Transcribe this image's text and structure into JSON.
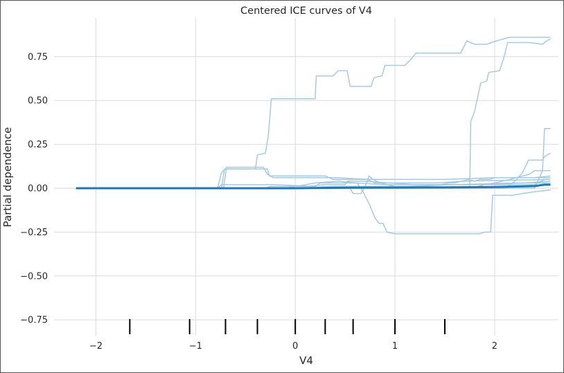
{
  "chart_data": {
    "type": "line",
    "title": "Centered ICE curves of V4",
    "xlabel": "V4",
    "ylabel": "Partial dependence",
    "xlim": [
      -2.42,
      2.64
    ],
    "ylim": [
      -0.84,
      0.97
    ],
    "xticks": [
      -2,
      -1,
      0,
      1,
      2
    ],
    "xtick_labels": [
      "−2",
      "−1",
      "0",
      "1",
      "2"
    ],
    "yticks": [
      0.75,
      0.5,
      0.25,
      0.0,
      -0.25,
      -0.5,
      -0.75
    ],
    "ytick_labels": [
      "0.75",
      "0.50",
      "0.25",
      "0.00",
      "−0.25",
      "−0.50",
      "−0.75"
    ],
    "grid": true,
    "legend": "none",
    "colors": {
      "ice": "#a6c9e0",
      "average": "#1f77b4",
      "rug": "#000000",
      "grid": "#d9d9d9",
      "frame": "#555555"
    },
    "rug": [
      -1.66,
      -1.06,
      -0.7,
      -0.38,
      0.0,
      0.3,
      0.58,
      1.0,
      1.5
    ],
    "series": [
      {
        "kind": "ice",
        "points": [
          [
            -2.2,
            0
          ],
          [
            -0.78,
            0
          ],
          [
            -0.74,
            0.09
          ],
          [
            -0.7,
            0.11
          ],
          [
            -0.4,
            0.11
          ],
          [
            -0.38,
            0.19
          ],
          [
            -0.3,
            0.2
          ],
          [
            -0.27,
            0.3
          ],
          [
            -0.24,
            0.51
          ],
          [
            0.2,
            0.51
          ],
          [
            0.21,
            0.64
          ],
          [
            0.38,
            0.64
          ],
          [
            0.43,
            0.67
          ],
          [
            0.52,
            0.67
          ],
          [
            0.55,
            0.58
          ],
          [
            0.76,
            0.58
          ],
          [
            0.79,
            0.63
          ],
          [
            0.87,
            0.64
          ],
          [
            0.9,
            0.7
          ],
          [
            0.97,
            0.7
          ],
          [
            1.1,
            0.7
          ],
          [
            1.17,
            0.74
          ],
          [
            1.21,
            0.77
          ],
          [
            1.35,
            0.77
          ],
          [
            1.66,
            0.77
          ],
          [
            1.72,
            0.84
          ],
          [
            1.8,
            0.82
          ],
          [
            1.92,
            0.82
          ],
          [
            2.02,
            0.84
          ],
          [
            2.15,
            0.86
          ],
          [
            2.56,
            0.86
          ]
        ]
      },
      {
        "kind": "ice",
        "points": [
          [
            -2.2,
            0
          ],
          [
            -0.74,
            0
          ],
          [
            -0.71,
            0.11
          ],
          [
            -0.5,
            0.11
          ],
          [
            -0.28,
            0.11
          ],
          [
            -0.26,
            0.07
          ],
          [
            0.3,
            0.07
          ],
          [
            0.38,
            0.05
          ],
          [
            0.72,
            0.05
          ],
          [
            0.8,
            0.03
          ],
          [
            1.4,
            0.03
          ],
          [
            1.7,
            0.04
          ],
          [
            2.56,
            0.05
          ]
        ]
      },
      {
        "kind": "ice",
        "points": [
          [
            -2.2,
            0
          ],
          [
            -0.72,
            0
          ],
          [
            -0.69,
            0.12
          ],
          [
            -0.5,
            0.12
          ],
          [
            -0.32,
            0.12
          ],
          [
            -0.28,
            0.08
          ],
          [
            -0.22,
            0.06
          ],
          [
            0.1,
            0.06
          ],
          [
            0.4,
            0.06
          ],
          [
            0.75,
            0.05
          ],
          [
            1.2,
            0.05
          ],
          [
            1.5,
            0.05
          ],
          [
            2.0,
            0.06
          ],
          [
            2.56,
            0.06
          ]
        ]
      },
      {
        "kind": "ice",
        "points": [
          [
            -2.2,
            0
          ],
          [
            -0.78,
            0
          ],
          [
            -0.74,
            0.02
          ],
          [
            -0.2,
            0.02
          ],
          [
            0.2,
            0.01
          ],
          [
            0.25,
            0.03
          ],
          [
            0.62,
            0.03
          ],
          [
            0.68,
            -0.02
          ],
          [
            0.75,
            -0.1
          ],
          [
            0.8,
            -0.17
          ],
          [
            0.84,
            -0.2
          ],
          [
            0.88,
            -0.2
          ],
          [
            0.92,
            -0.25
          ],
          [
            1.0,
            -0.26
          ],
          [
            1.85,
            -0.26
          ],
          [
            1.9,
            -0.25
          ],
          [
            1.96,
            -0.25
          ],
          [
            1.98,
            -0.04
          ],
          [
            2.18,
            -0.04
          ],
          [
            2.28,
            -0.03
          ],
          [
            2.4,
            -0.02
          ],
          [
            2.56,
            -0.01
          ]
        ]
      },
      {
        "kind": "ice",
        "points": [
          [
            -2.2,
            0
          ],
          [
            0.55,
            0
          ],
          [
            0.58,
            -0.03
          ],
          [
            0.66,
            -0.03
          ],
          [
            0.7,
            0.01
          ],
          [
            0.74,
            0.07
          ],
          [
            0.78,
            0.05
          ],
          [
            0.85,
            0.03
          ],
          [
            1.0,
            0.01
          ],
          [
            1.3,
            0.01
          ],
          [
            1.45,
            0.02
          ],
          [
            1.55,
            0.03
          ],
          [
            1.6,
            0.03
          ],
          [
            1.74,
            0.05
          ],
          [
            1.8,
            0.04
          ],
          [
            1.85,
            0.05
          ],
          [
            1.95,
            0.05
          ],
          [
            2.0,
            0.06
          ],
          [
            2.22,
            0.06
          ],
          [
            2.4,
            0.06
          ],
          [
            2.56,
            0.07
          ]
        ]
      },
      {
        "kind": "ice",
        "points": [
          [
            -2.2,
            0
          ],
          [
            1.75,
            0
          ],
          [
            1.76,
            0.38
          ],
          [
            1.8,
            0.44
          ],
          [
            1.86,
            0.6
          ],
          [
            1.92,
            0.61
          ],
          [
            1.94,
            0.66
          ],
          [
            2.05,
            0.67
          ],
          [
            2.09,
            0.74
          ],
          [
            2.13,
            0.83
          ],
          [
            2.35,
            0.83
          ],
          [
            2.48,
            0.82
          ],
          [
            2.52,
            0.84
          ],
          [
            2.56,
            0.85
          ]
        ]
      },
      {
        "kind": "ice",
        "points": [
          [
            -2.2,
            0
          ],
          [
            1.75,
            0
          ],
          [
            1.84,
            0.01
          ],
          [
            1.9,
            0.02
          ],
          [
            2.0,
            0.03
          ],
          [
            2.15,
            0.05
          ],
          [
            2.35,
            0.08
          ],
          [
            2.4,
            0.1
          ],
          [
            2.45,
            0.1
          ],
          [
            2.52,
            0.1
          ],
          [
            2.56,
            0.1
          ]
        ]
      },
      {
        "kind": "ice",
        "points": [
          [
            -2.2,
            0
          ],
          [
            2.1,
            0
          ],
          [
            2.16,
            0.02
          ],
          [
            2.22,
            0.05
          ],
          [
            2.28,
            0.09
          ],
          [
            2.34,
            0.16
          ],
          [
            2.48,
            0.16
          ],
          [
            2.5,
            0.18
          ],
          [
            2.56,
            0.2
          ]
        ]
      },
      {
        "kind": "ice",
        "points": [
          [
            -2.2,
            0
          ],
          [
            2.4,
            0
          ],
          [
            2.48,
            0.1
          ],
          [
            2.5,
            0.34
          ],
          [
            2.56,
            0.34
          ]
        ]
      },
      {
        "kind": "ice",
        "points": [
          [
            -2.2,
            0
          ],
          [
            -0.3,
            0
          ],
          [
            -0.25,
            0.01
          ],
          [
            0.1,
            0.01
          ],
          [
            0.3,
            0.02
          ],
          [
            0.5,
            0.02
          ],
          [
            0.52,
            0.04
          ],
          [
            0.68,
            0.04
          ],
          [
            1.2,
            0.02
          ],
          [
            1.6,
            0.02
          ],
          [
            2.2,
            0.03
          ],
          [
            2.56,
            0.03
          ]
        ]
      },
      {
        "kind": "ice",
        "points": [
          [
            -2.2,
            0
          ],
          [
            -0.1,
            0
          ],
          [
            0.2,
            0.03
          ],
          [
            0.44,
            0.04
          ],
          [
            0.6,
            0.03
          ],
          [
            0.9,
            0.02
          ],
          [
            1.3,
            0.02
          ],
          [
            1.8,
            0.02
          ],
          [
            2.3,
            0.03
          ],
          [
            2.56,
            0.04
          ]
        ]
      },
      {
        "kind": "ice",
        "points": [
          [
            -2.2,
            0
          ],
          [
            0.0,
            0
          ],
          [
            0.35,
            0.01
          ],
          [
            0.7,
            0.01
          ],
          [
            1.1,
            0.01
          ],
          [
            1.6,
            0.02
          ],
          [
            2.0,
            0.02
          ],
          [
            2.4,
            0.02
          ],
          [
            2.5,
            0.05
          ],
          [
            2.56,
            0.05
          ]
        ]
      },
      {
        "kind": "average",
        "points": [
          [
            -2.2,
            0
          ],
          [
            0.0,
            0.0
          ],
          [
            0.5,
            0.003
          ],
          [
            1.0,
            0.004
          ],
          [
            1.5,
            0.005
          ],
          [
            2.0,
            0.007
          ],
          [
            2.4,
            0.012
          ],
          [
            2.5,
            0.02
          ],
          [
            2.56,
            0.02
          ]
        ]
      }
    ]
  }
}
